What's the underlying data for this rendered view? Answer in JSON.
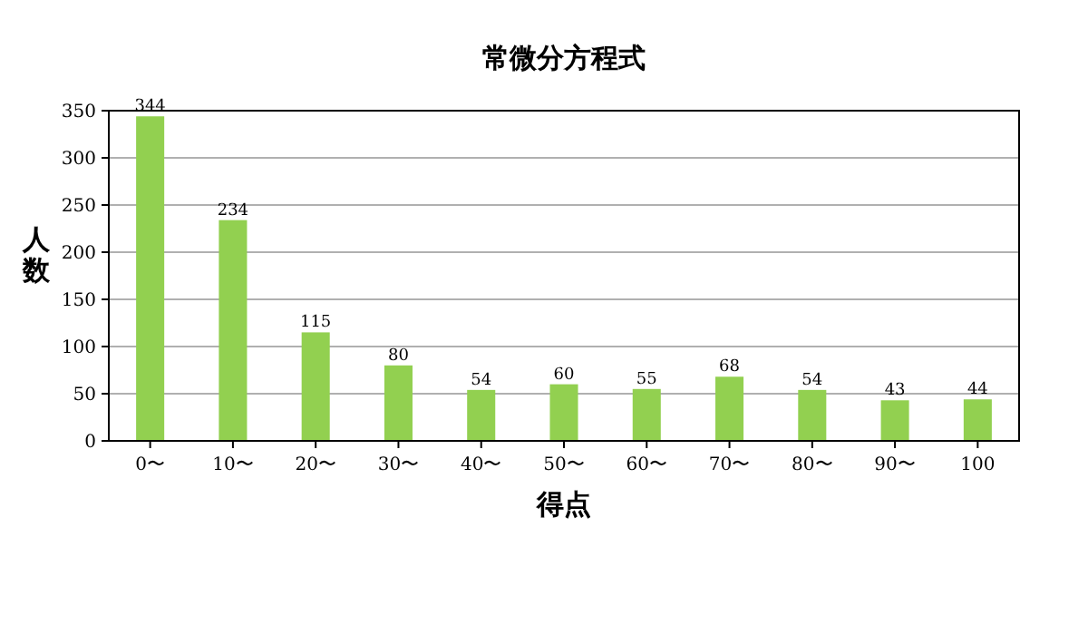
{
  "chart_data": {
    "type": "bar",
    "title": "常微分方程式",
    "xlabel": "得点",
    "ylabel": "人数",
    "categories": [
      "0〜",
      "10〜",
      "20〜",
      "30〜",
      "40〜",
      "50〜",
      "60〜",
      "70〜",
      "80〜",
      "90〜",
      "100"
    ],
    "values": [
      344,
      234,
      115,
      80,
      54,
      60,
      55,
      68,
      54,
      43,
      44
    ],
    "color": "#92d050",
    "ylim": [
      0,
      350
    ],
    "yticks": [
      0,
      50,
      100,
      150,
      200,
      250,
      300,
      350
    ],
    "grid": "y",
    "data_labels": true
  }
}
